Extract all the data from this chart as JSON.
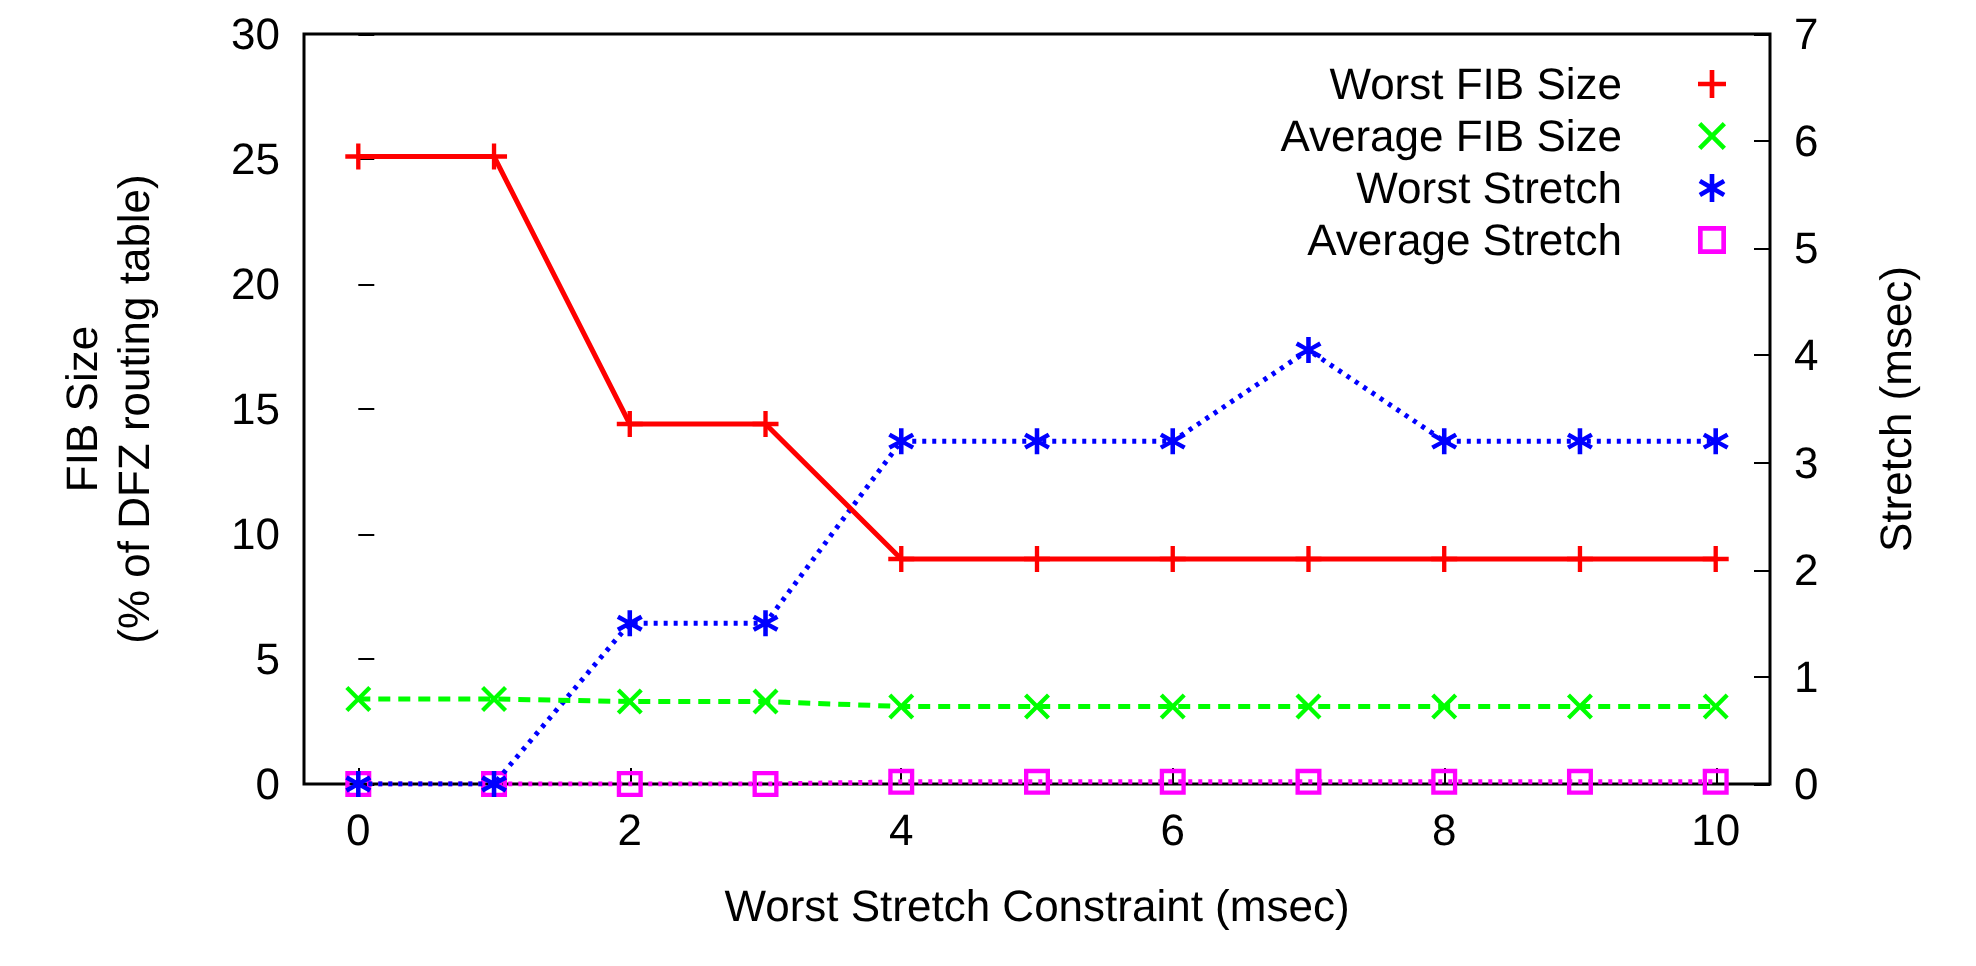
{
  "chart_data": {
    "type": "line",
    "xlabel": "Worst Stretch Constraint (msec)",
    "ylabel": "FIB Size\n(% of DFZ routing table)",
    "y2label": "Stretch (msec)",
    "x": [
      0,
      1,
      2,
      3,
      4,
      5,
      6,
      7,
      8,
      9,
      10
    ],
    "series": [
      {
        "name": "Worst FIB Size",
        "color": "#ff0000",
        "marker": "plus",
        "line_style": "solid",
        "values": [
          25.1,
          25.1,
          14.4,
          14.4,
          9.0,
          9.0,
          9.0,
          9.0,
          9.0,
          9.0,
          9.0
        ]
      },
      {
        "name": "Average FIB Size",
        "color": "#00ff00",
        "marker": "cross",
        "line_style": "dashed",
        "values": [
          3.4,
          3.4,
          3.3,
          3.3,
          3.1,
          3.1,
          3.1,
          3.1,
          3.1,
          3.1,
          3.1
        ]
      },
      {
        "name": "Worst Stretch",
        "color": "#0000ff",
        "marker": "star",
        "line_style": "dotted",
        "axis": "y2",
        "values": [
          0,
          0,
          1.5,
          1.5,
          3.2,
          3.2,
          3.2,
          4.05,
          3.2,
          3.2,
          3.2
        ]
      },
      {
        "name": "Average Stretch",
        "color": "#ff00ff",
        "marker": "square",
        "line_style": "dotted",
        "axis": "y2",
        "values": [
          0,
          0,
          0,
          0,
          0.02,
          0.02,
          0.02,
          0.02,
          0.02,
          0.02,
          0.02
        ]
      }
    ],
    "xlim": [
      -0.4,
      10.4
    ],
    "xticks": [
      0,
      2,
      4,
      6,
      8,
      10
    ],
    "ylim": [
      0,
      30
    ],
    "yticks": [
      0,
      5,
      10,
      15,
      20,
      25,
      30
    ],
    "y2lim": [
      0,
      7
    ],
    "y2ticks": [
      0,
      1,
      2,
      3,
      4,
      5,
      6,
      7
    ],
    "grid": false,
    "legend": "top right"
  }
}
